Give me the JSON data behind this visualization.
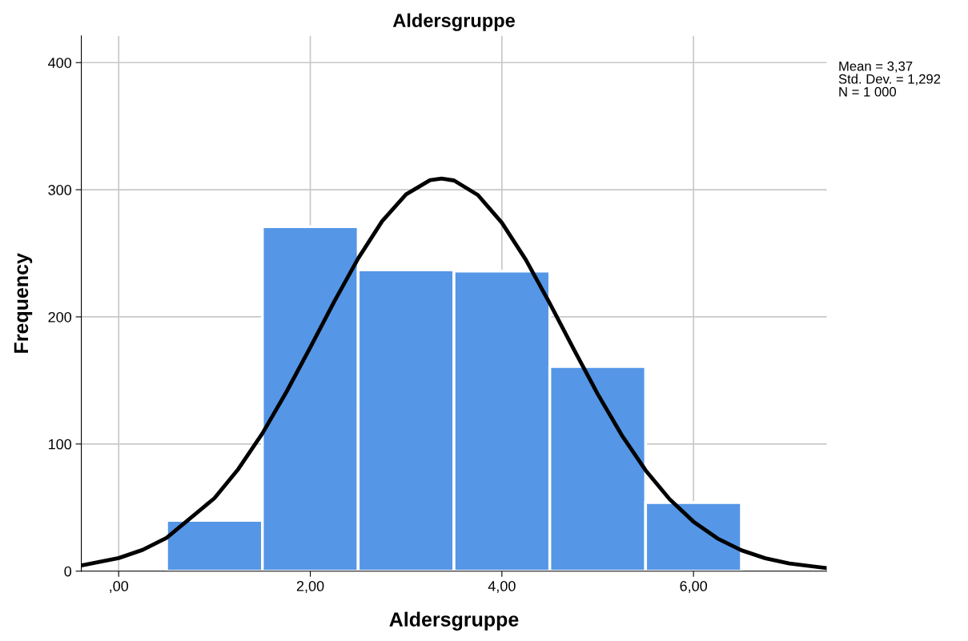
{
  "chart_data": {
    "type": "histogram",
    "title": "Aldersgruppe",
    "xlabel": "Aldersgruppe",
    "ylabel": "Frequency",
    "bins": [
      0.5,
      1.5,
      2.5,
      3.5,
      4.5,
      5.5,
      6.5
    ],
    "values": [
      40,
      271,
      237,
      236,
      161,
      54
    ],
    "color": "#5596e6",
    "series": [
      {
        "type": "line",
        "color": "#000000",
        "x": [
          -0.39,
          0,
          0.25,
          0.5,
          1,
          1.25,
          1.5,
          1.75,
          2,
          2.25,
          2.5,
          2.75,
          3,
          3.25,
          3.37,
          3.5,
          3.75,
          4,
          4.25,
          4.5,
          4.75,
          5,
          5.25,
          5.5,
          5.75,
          6,
          6.25,
          6.5,
          6.75,
          7,
          7.39
        ],
        "values": [
          4.5,
          10.3,
          16.7,
          26.2,
          57.4,
          80.4,
          108.3,
          140.8,
          176,
          212,
          246,
          275.3,
          296.4,
          307.5,
          308.8,
          307.3,
          295.8,
          274,
          244.9,
          210.6,
          174.6,
          139.3,
          107.1,
          79.3,
          56.6,
          38.9,
          25.7,
          16.4,
          10.1,
          6,
          2.4
        ]
      }
    ],
    "xlim": [
      -0.39,
      7.39
    ],
    "xticks": [
      {
        "value": 0,
        "label": ",00"
      },
      {
        "value": 2,
        "label": "2,00"
      },
      {
        "value": 4,
        "label": "4,00"
      },
      {
        "value": 6,
        "label": "6,00"
      }
    ],
    "ylim": [
      0,
      421
    ],
    "yticks": [
      0,
      100,
      200,
      300,
      400
    ],
    "grid": true,
    "annotations": [
      "Mean = 3,37",
      "Std. Dev. = 1,292",
      "N = 1 000"
    ]
  }
}
